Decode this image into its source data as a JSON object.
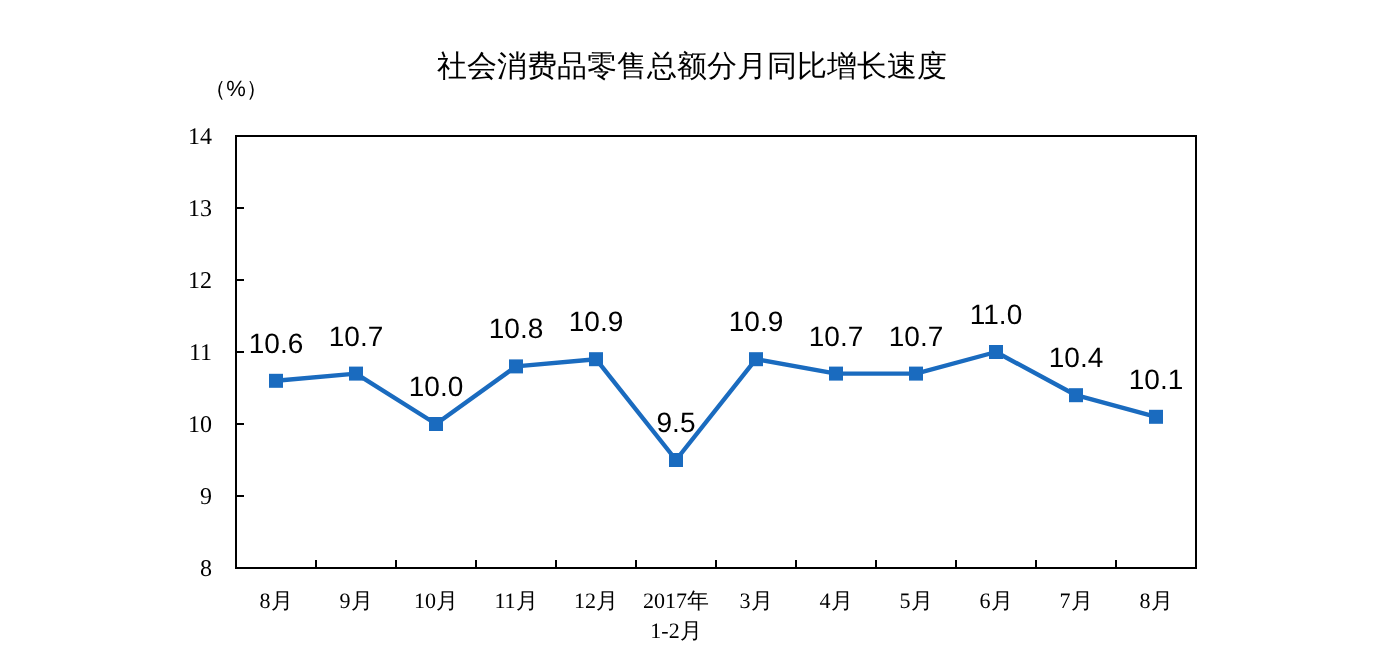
{
  "chart_data": {
    "type": "line",
    "title": "社会消费品零售总额分月同比增长速度",
    "ylabel": "（%）",
    "categories": [
      "8月",
      "9月",
      "10月",
      "11月",
      "12月",
      "2017年\n1-2月",
      "3月",
      "4月",
      "5月",
      "6月",
      "7月",
      "8月"
    ],
    "series": [
      {
        "color": "#1a6bbf",
        "values": [
          10.6,
          10.7,
          10.0,
          10.8,
          10.9,
          9.5,
          10.9,
          10.7,
          10.7,
          11.0,
          10.4,
          10.1
        ],
        "value_labels": [
          "10.6",
          "10.7",
          "10.0",
          "10.8",
          "10.9",
          "9.5",
          "10.9",
          "10.7",
          "10.7",
          "11.0",
          "10.4",
          "10.1"
        ]
      }
    ],
    "ylim": [
      8,
      14
    ],
    "yticks": [
      8,
      9,
      10,
      11,
      12,
      13,
      14
    ],
    "grid": false,
    "marker": "square",
    "line_style": "solid"
  }
}
